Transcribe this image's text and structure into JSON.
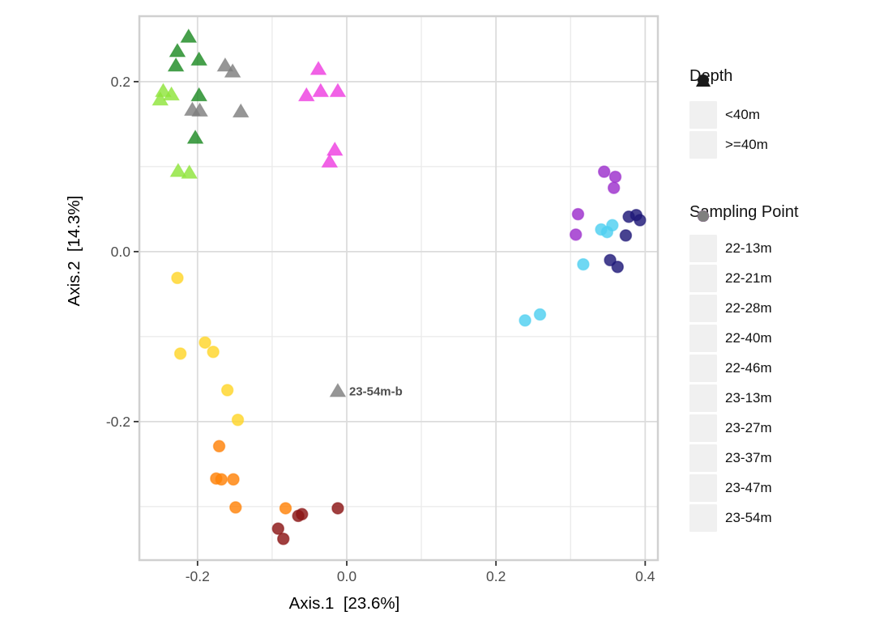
{
  "chart_data": {
    "type": "scatter",
    "title": "",
    "xlabel": "Axis.1  [23.6%]",
    "ylabel": "Axis.2  [14.3%]",
    "xlim": [
      -0.278,
      0.417
    ],
    "ylim": [
      -0.363,
      0.277
    ],
    "x_major_ticks": [
      -0.2,
      0.0,
      0.2,
      0.4
    ],
    "y_major_ticks": [
      0.2,
      0.0,
      -0.2
    ],
    "x_minor_ticks": [
      -0.1,
      0.1,
      0.3
    ],
    "y_minor_ticks": [
      0.1,
      -0.1,
      -0.3
    ],
    "grid": "major and minor gridlines on, white panel, gray border",
    "legend_position": "right",
    "point_alpha": 0.82,
    "shape_rule": {
      "circle": "<40m",
      "triangle": ">=40m"
    },
    "series": [
      {
        "name": "22-13m",
        "color": "#8b1515",
        "shape": "circle",
        "points": [
          [
            -0.092,
            -0.326
          ],
          [
            -0.085,
            -0.338
          ],
          [
            -0.065,
            -0.311
          ],
          [
            -0.06,
            -0.309
          ],
          [
            -0.012,
            -0.302
          ]
        ]
      },
      {
        "name": "22-21m",
        "color": "#ff8208",
        "shape": "circle",
        "points": [
          [
            -0.171,
            -0.229
          ],
          [
            -0.175,
            -0.267
          ],
          [
            -0.168,
            -0.268
          ],
          [
            -0.152,
            -0.268
          ],
          [
            -0.149,
            -0.301
          ],
          [
            -0.082,
            -0.302
          ]
        ]
      },
      {
        "name": "22-28m",
        "color": "#ffd629",
        "shape": "circle",
        "points": [
          [
            -0.227,
            -0.031
          ],
          [
            -0.223,
            -0.12
          ],
          [
            -0.19,
            -0.107
          ],
          [
            -0.179,
            -0.118
          ],
          [
            -0.16,
            -0.163
          ],
          [
            -0.146,
            -0.198
          ]
        ]
      },
      {
        "name": "22-40m",
        "color": "#8fe43c",
        "shape": "triangle",
        "points": [
          [
            -0.246,
            0.189
          ],
          [
            -0.235,
            0.185
          ],
          [
            -0.25,
            0.179
          ],
          [
            -0.226,
            0.095
          ],
          [
            -0.211,
            0.093
          ]
        ]
      },
      {
        "name": "22-46m",
        "color": "#1f8b24",
        "shape": "triangle",
        "points": [
          [
            -0.212,
            0.253
          ],
          [
            -0.227,
            0.236
          ],
          [
            -0.229,
            0.219
          ],
          [
            -0.198,
            0.226
          ],
          [
            -0.198,
            0.184
          ],
          [
            -0.203,
            0.134
          ]
        ]
      },
      {
        "name": "23-13m",
        "color": "#4fd0f0",
        "shape": "circle",
        "points": [
          [
            0.356,
            0.031
          ],
          [
            0.341,
            0.026
          ],
          [
            0.349,
            0.023
          ],
          [
            0.317,
            -0.015
          ],
          [
            0.239,
            -0.081
          ],
          [
            0.259,
            -0.074
          ]
        ]
      },
      {
        "name": "23-27m",
        "color": "#1f1878",
        "shape": "circle",
        "points": [
          [
            0.378,
            0.041
          ],
          [
            0.388,
            0.043
          ],
          [
            0.393,
            0.037
          ],
          [
            0.374,
            0.019
          ],
          [
            0.353,
            -0.01
          ],
          [
            0.363,
            -0.018
          ]
        ]
      },
      {
        "name": "23-37m",
        "color": "#9c30cc",
        "shape": "circle",
        "points": [
          [
            0.345,
            0.094
          ],
          [
            0.36,
            0.088
          ],
          [
            0.358,
            0.075
          ],
          [
            0.31,
            0.044
          ],
          [
            0.307,
            0.02
          ]
        ]
      },
      {
        "name": "23-47m",
        "color": "#ee3fe0",
        "shape": "triangle",
        "points": [
          [
            -0.038,
            0.215
          ],
          [
            -0.054,
            0.184
          ],
          [
            -0.035,
            0.189
          ],
          [
            -0.012,
            0.189
          ],
          [
            -0.016,
            0.12
          ],
          [
            -0.023,
            0.106
          ]
        ]
      },
      {
        "name": "23-54m",
        "color": "#7f7f7f",
        "shape": "triangle",
        "points": [
          [
            -0.163,
            0.219
          ],
          [
            -0.153,
            0.212
          ],
          [
            -0.207,
            0.167
          ],
          [
            -0.197,
            0.166
          ],
          [
            -0.142,
            0.165
          ],
          [
            -0.012,
            -0.164
          ]
        ]
      }
    ],
    "annotation": {
      "text": "23-54m-b",
      "x": -0.012,
      "y": -0.164,
      "series": "23-54m",
      "color": "#4d4d4d"
    }
  },
  "legend_depth": {
    "title": "Depth",
    "symbol_color": "#1a1a1a",
    "items": [
      {
        "label": "<40m",
        "shape": "circle"
      },
      {
        "label": ">=40m",
        "shape": "triangle"
      }
    ]
  },
  "legend_sampling": {
    "title": "Sampling Point",
    "items": [
      {
        "label": "22-13m",
        "color": "#8b1515"
      },
      {
        "label": "22-21m",
        "color": "#ff8208"
      },
      {
        "label": "22-28m",
        "color": "#ffd629"
      },
      {
        "label": "22-40m",
        "color": "#8fe43c"
      },
      {
        "label": "22-46m",
        "color": "#1f8b24"
      },
      {
        "label": "23-13m",
        "color": "#4fd0f0"
      },
      {
        "label": "23-27m",
        "color": "#1f1878"
      },
      {
        "label": "23-37m",
        "color": "#9c30cc"
      },
      {
        "label": "23-47m",
        "color": "#ee3fe0"
      },
      {
        "label": "23-54m",
        "color": "#7f7f7f"
      }
    ]
  },
  "style": {
    "panel_border": "#d0d0d0",
    "major_grid": "#dcdcdc",
    "minor_grid": "#ebebeb",
    "tick_mark": "#333333",
    "tick_label": "#4d4d4d",
    "axis_title": "#000000",
    "legend_key_bg": "#f0f0f0"
  }
}
